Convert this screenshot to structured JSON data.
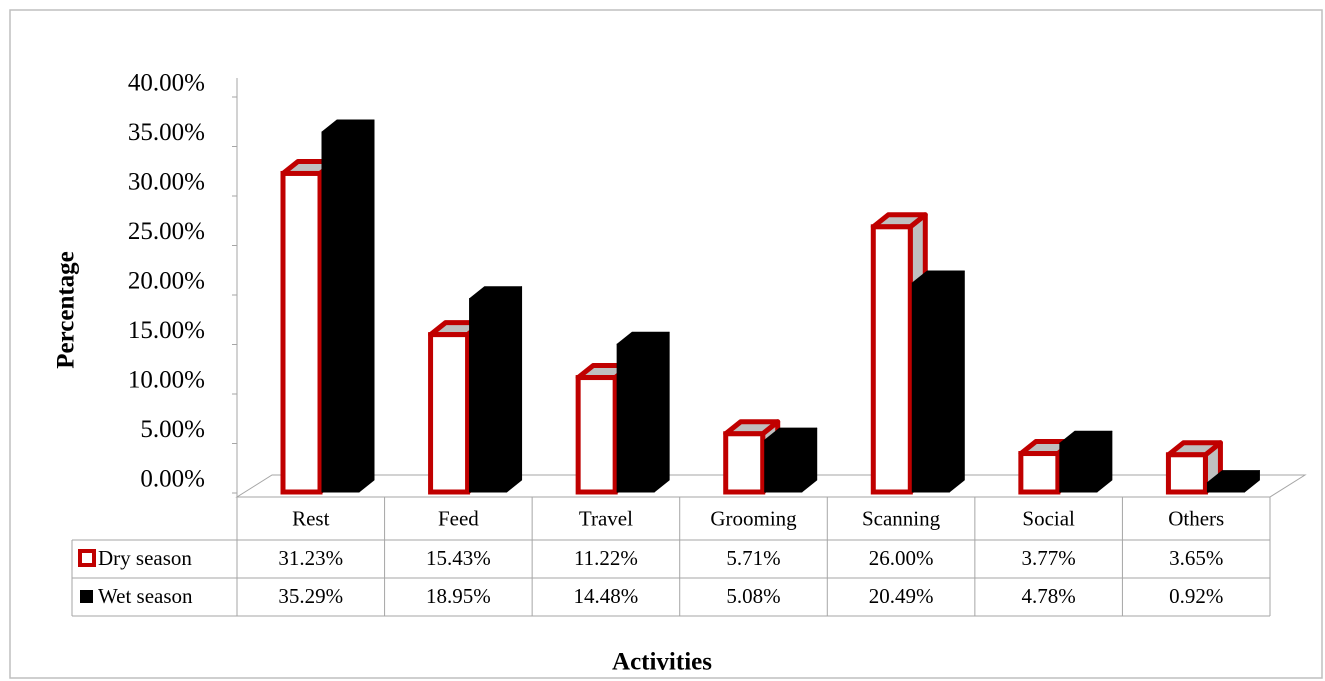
{
  "chart_data": {
    "type": "bar3d",
    "xlabel": "Activities",
    "ylabel": "Percentage",
    "categories": [
      "Rest",
      "Feed",
      "Travel",
      "Grooming",
      "Scanning",
      "Social",
      "Others"
    ],
    "series": [
      {
        "name": "Dry season",
        "color": "#c00000",
        "values": [
          31.23,
          15.43,
          11.22,
          5.71,
          26.0,
          3.77,
          3.65
        ],
        "value_labels": [
          "31.23%",
          "15.43%",
          "11.22%",
          "5.71%",
          "26.00%",
          "3.77%",
          "3.65%"
        ]
      },
      {
        "name": "Wet season",
        "color": "#000000",
        "values": [
          35.29,
          18.95,
          14.48,
          5.08,
          20.49,
          4.78,
          0.92
        ],
        "value_labels": [
          "35.29%",
          "18.95%",
          "14.48%",
          "5.08%",
          "20.49%",
          "4.78%",
          "0.92%"
        ]
      }
    ],
    "ylim": [
      0,
      40
    ],
    "yticks": [
      {
        "value": 0,
        "label": "0.00%"
      },
      {
        "value": 5,
        "label": "5.00%"
      },
      {
        "value": 10,
        "label": "10.00%"
      },
      {
        "value": 15,
        "label": "15.00%"
      },
      {
        "value": 20,
        "label": "20.00%"
      },
      {
        "value": 25,
        "label": "25.00%"
      },
      {
        "value": 30,
        "label": "30.00%"
      },
      {
        "value": 35,
        "label": "35.00%"
      },
      {
        "value": 40,
        "label": "40.00%"
      }
    ],
    "data_table": true
  }
}
